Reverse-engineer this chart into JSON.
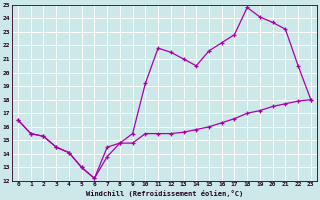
{
  "xlabel": "Windchill (Refroidissement éolien,°C)",
  "background_color": "#cde8e8",
  "grid_color": "#b0d8d8",
  "line_color": "#aa00aa",
  "xlim": [
    -0.5,
    23.5
  ],
  "ylim": [
    12,
    25
  ],
  "xticks": [
    0,
    1,
    2,
    3,
    4,
    5,
    6,
    7,
    8,
    9,
    10,
    11,
    12,
    13,
    14,
    15,
    16,
    17,
    18,
    19,
    20,
    21,
    22,
    23
  ],
  "yticks": [
    12,
    13,
    14,
    15,
    16,
    17,
    18,
    19,
    20,
    21,
    22,
    23,
    24,
    25
  ],
  "line1_x": [
    0,
    1,
    2,
    3,
    4,
    5,
    6,
    7,
    8,
    9,
    10,
    11,
    12,
    13,
    14,
    15,
    16,
    17,
    18,
    19,
    20,
    21,
    22,
    23
  ],
  "line1_y": [
    16.5,
    15.5,
    15.3,
    14.5,
    14.1,
    13.0,
    12.2,
    14.5,
    14.8,
    15.5,
    19.2,
    21.8,
    21.5,
    21.0,
    20.5,
    21.6,
    22.2,
    22.8,
    24.8,
    24.1,
    23.7,
    23.2,
    20.5,
    18.0
  ],
  "line2_x": [
    0,
    1,
    2,
    3,
    4,
    5,
    6,
    7,
    8,
    9,
    10,
    11,
    12,
    13,
    14,
    15,
    16,
    17,
    18,
    19,
    20,
    21,
    22,
    23
  ],
  "line2_y": [
    16.5,
    15.5,
    15.3,
    14.5,
    14.1,
    13.0,
    12.2,
    13.8,
    14.8,
    14.8,
    15.5,
    15.5,
    15.5,
    15.6,
    15.8,
    16.0,
    16.3,
    16.6,
    17.0,
    17.2,
    17.5,
    17.7,
    17.9,
    18.0
  ]
}
